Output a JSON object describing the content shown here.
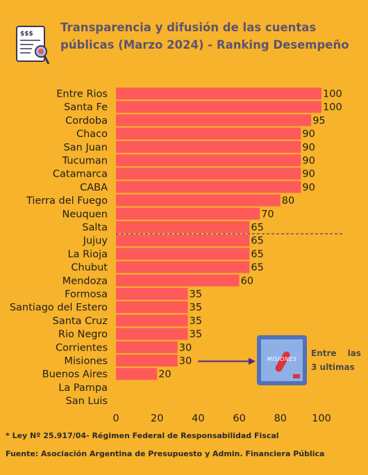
{
  "title": "Transparencia y difusión de las cuentas públicas (Marzo 2024) - Ranking Desempeño",
  "icon": "budget-document-icon",
  "colors": {
    "background": "#f7b32b",
    "bar": "#ff5a5a",
    "title": "#5c5470",
    "divider": "#4b2a8a",
    "arrow": "#4b2a8a"
  },
  "chart_data": {
    "type": "bar",
    "orientation": "horizontal",
    "categories": [
      "Entre Rios",
      "Santa Fe",
      "Cordoba",
      "Chaco",
      "San Juan",
      "Tucuman",
      "Catamarca",
      "CABA",
      "Tierra del Fuego",
      "Neuquen",
      "Salta",
      "Jujuy",
      "La Rioja",
      "Chubut",
      "Mendoza",
      "Formosa",
      "Santiago del Estero",
      "Santa Cruz",
      "Rio Negro",
      "Corrientes",
      "Misiones",
      "Buenos Aires",
      "La Pampa",
      "San Luis"
    ],
    "values": [
      100,
      100,
      95,
      90,
      90,
      90,
      90,
      90,
      80,
      70,
      65,
      65,
      65,
      65,
      60,
      35,
      35,
      35,
      35,
      30,
      30,
      20,
      null,
      null
    ],
    "data_labels": [
      "100",
      "100",
      "95",
      "90",
      "90",
      "90",
      "90",
      "90",
      "80",
      "70",
      "65",
      "65",
      "65",
      "65",
      "60",
      "35",
      "35",
      "35",
      "35",
      "30",
      "30",
      "20",
      "",
      ""
    ],
    "x_ticks": [
      "0",
      "20",
      "40",
      "60",
      "80",
      "100"
    ],
    "xlim": [
      0,
      110
    ],
    "grid": false,
    "divider_between": [
      "Salta",
      "Jujuy"
    ],
    "highlight_category": "Misiones"
  },
  "annotation": {
    "logo_text": "MISIONES",
    "note": "Entre las 3 ultimas"
  },
  "footnotes": {
    "law": "* Ley Nº 25.917/04- Régimen Federal de Responsabilidad Fiscal",
    "source": "Fuente: Asociación Argentina de Presupuesto y Admin. Financiera Pública"
  }
}
